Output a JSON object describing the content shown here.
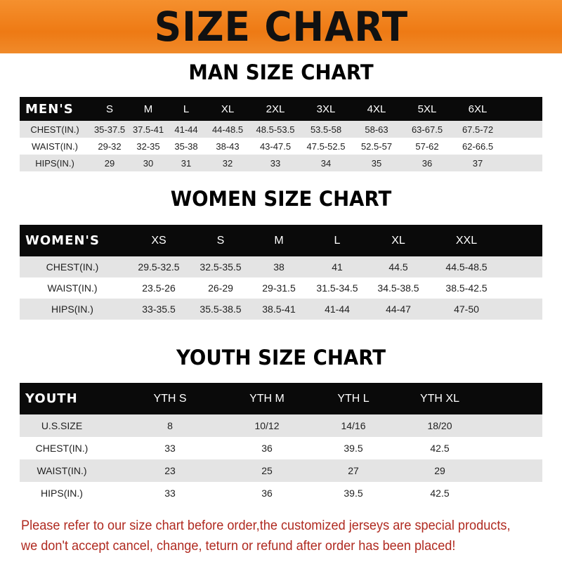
{
  "banner_title": "SIZE CHART",
  "men": {
    "title": "MAN SIZE CHART",
    "header": [
      "MEN'S",
      "S",
      "M",
      "L",
      "XL",
      "2XL",
      "3XL",
      "4XL",
      "5XL",
      "6XL"
    ],
    "rows": [
      [
        "CHEST(IN.)",
        "35-37.5",
        "37.5-41",
        "41-44",
        "44-48.5",
        "48.5-53.5",
        "53.5-58",
        "58-63",
        "63-67.5",
        "67.5-72"
      ],
      [
        "WAIST(IN.)",
        "29-32",
        "32-35",
        "35-38",
        "38-43",
        "43-47.5",
        "47.5-52.5",
        "52.5-57",
        "57-62",
        "62-66.5"
      ],
      [
        "HIPS(IN.)",
        "29",
        "30",
        "31",
        "32",
        "33",
        "34",
        "35",
        "36",
        "37"
      ]
    ]
  },
  "women": {
    "title": "WOMEN SIZE CHART",
    "header": [
      "WOMEN'S",
      "XS",
      "S",
      "M",
      "L",
      "XL",
      "XXL"
    ],
    "rows": [
      [
        "CHEST(IN.)",
        "29.5-32.5",
        "32.5-35.5",
        "38",
        "41",
        "44.5",
        "44.5-48.5"
      ],
      [
        "WAIST(IN.)",
        "23.5-26",
        "26-29",
        "29-31.5",
        "31.5-34.5",
        "34.5-38.5",
        "38.5-42.5"
      ],
      [
        "HIPS(IN.)",
        "33-35.5",
        "35.5-38.5",
        "38.5-41",
        "41-44",
        "44-47",
        "47-50"
      ]
    ]
  },
  "youth": {
    "title": "YOUTH SIZE CHART",
    "header": [
      "YOUTH",
      "YTH S",
      "YTH M",
      "YTH L",
      "YTH XL"
    ],
    "rows": [
      [
        "U.S.SIZE",
        "8",
        "10/12",
        "14/16",
        "18/20"
      ],
      [
        "CHEST(IN.)",
        "33",
        "36",
        "39.5",
        "42.5"
      ],
      [
        "WAIST(IN.)",
        "23",
        "25",
        "27",
        "29"
      ],
      [
        "HIPS(IN.)",
        "33",
        "36",
        "39.5",
        "42.5"
      ]
    ]
  },
  "note": [
    "Please refer to our size chart before order,the customized jerseys are special products,",
    "we don't accept cancel, change, teturn or refund after order has been placed!"
  ],
  "colors": {
    "banner": "#ee7a14",
    "header": "#0a0a0a",
    "stripe": "#e4e4e4",
    "note": "#b02a20"
  }
}
